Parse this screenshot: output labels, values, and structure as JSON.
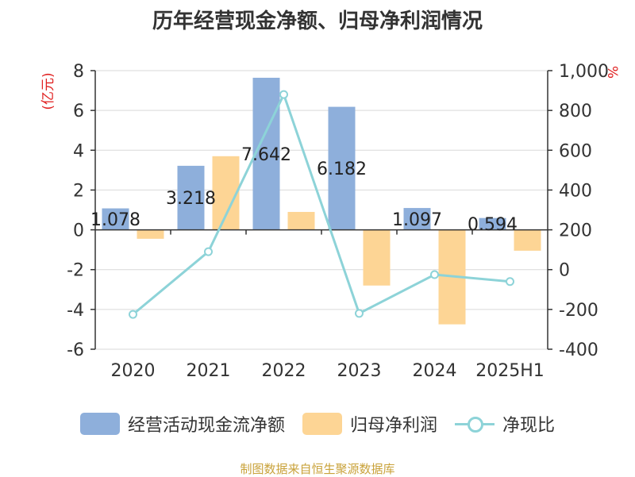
{
  "title": "历年经营现金净额、归母净利润情况",
  "source": "制图数据来自恒生聚源数据库",
  "chart_data": {
    "type": "bar",
    "categories": [
      "2020",
      "2021",
      "2022",
      "2023",
      "2024",
      "2025H1"
    ],
    "left_axis": {
      "label": "(亿元)",
      "ylim": [
        -6,
        8
      ],
      "ticks": [
        "-6",
        "-4",
        "-2",
        "0",
        "2",
        "4",
        "6",
        "8"
      ]
    },
    "right_axis": {
      "label": "%",
      "ylim": [
        -400,
        1000
      ],
      "ticks": [
        "-400",
        "-200",
        "0",
        "200",
        "400",
        "600",
        "800",
        "1,000"
      ]
    },
    "series": [
      {
        "name": "经营活动现金流净额",
        "type": "bar",
        "axis": "left",
        "color": "#8eafdb",
        "values": [
          1.078,
          3.218,
          7.642,
          6.182,
          1.097,
          0.594
        ],
        "labels": [
          "1.078",
          "3.218",
          "7.642",
          "6.182",
          "1.097",
          "0.594"
        ]
      },
      {
        "name": "归母净利润",
        "type": "bar",
        "axis": "left",
        "color": "#fdd595",
        "values": [
          -0.45,
          3.7,
          0.9,
          -2.8,
          -4.75,
          -1.05
        ]
      },
      {
        "name": "净现比",
        "type": "line",
        "axis": "right",
        "color": "#8dd3d8",
        "values": [
          -225,
          90,
          880,
          -220,
          -25,
          -60
        ]
      }
    ],
    "grid": true,
    "legend_position": "bottom"
  }
}
